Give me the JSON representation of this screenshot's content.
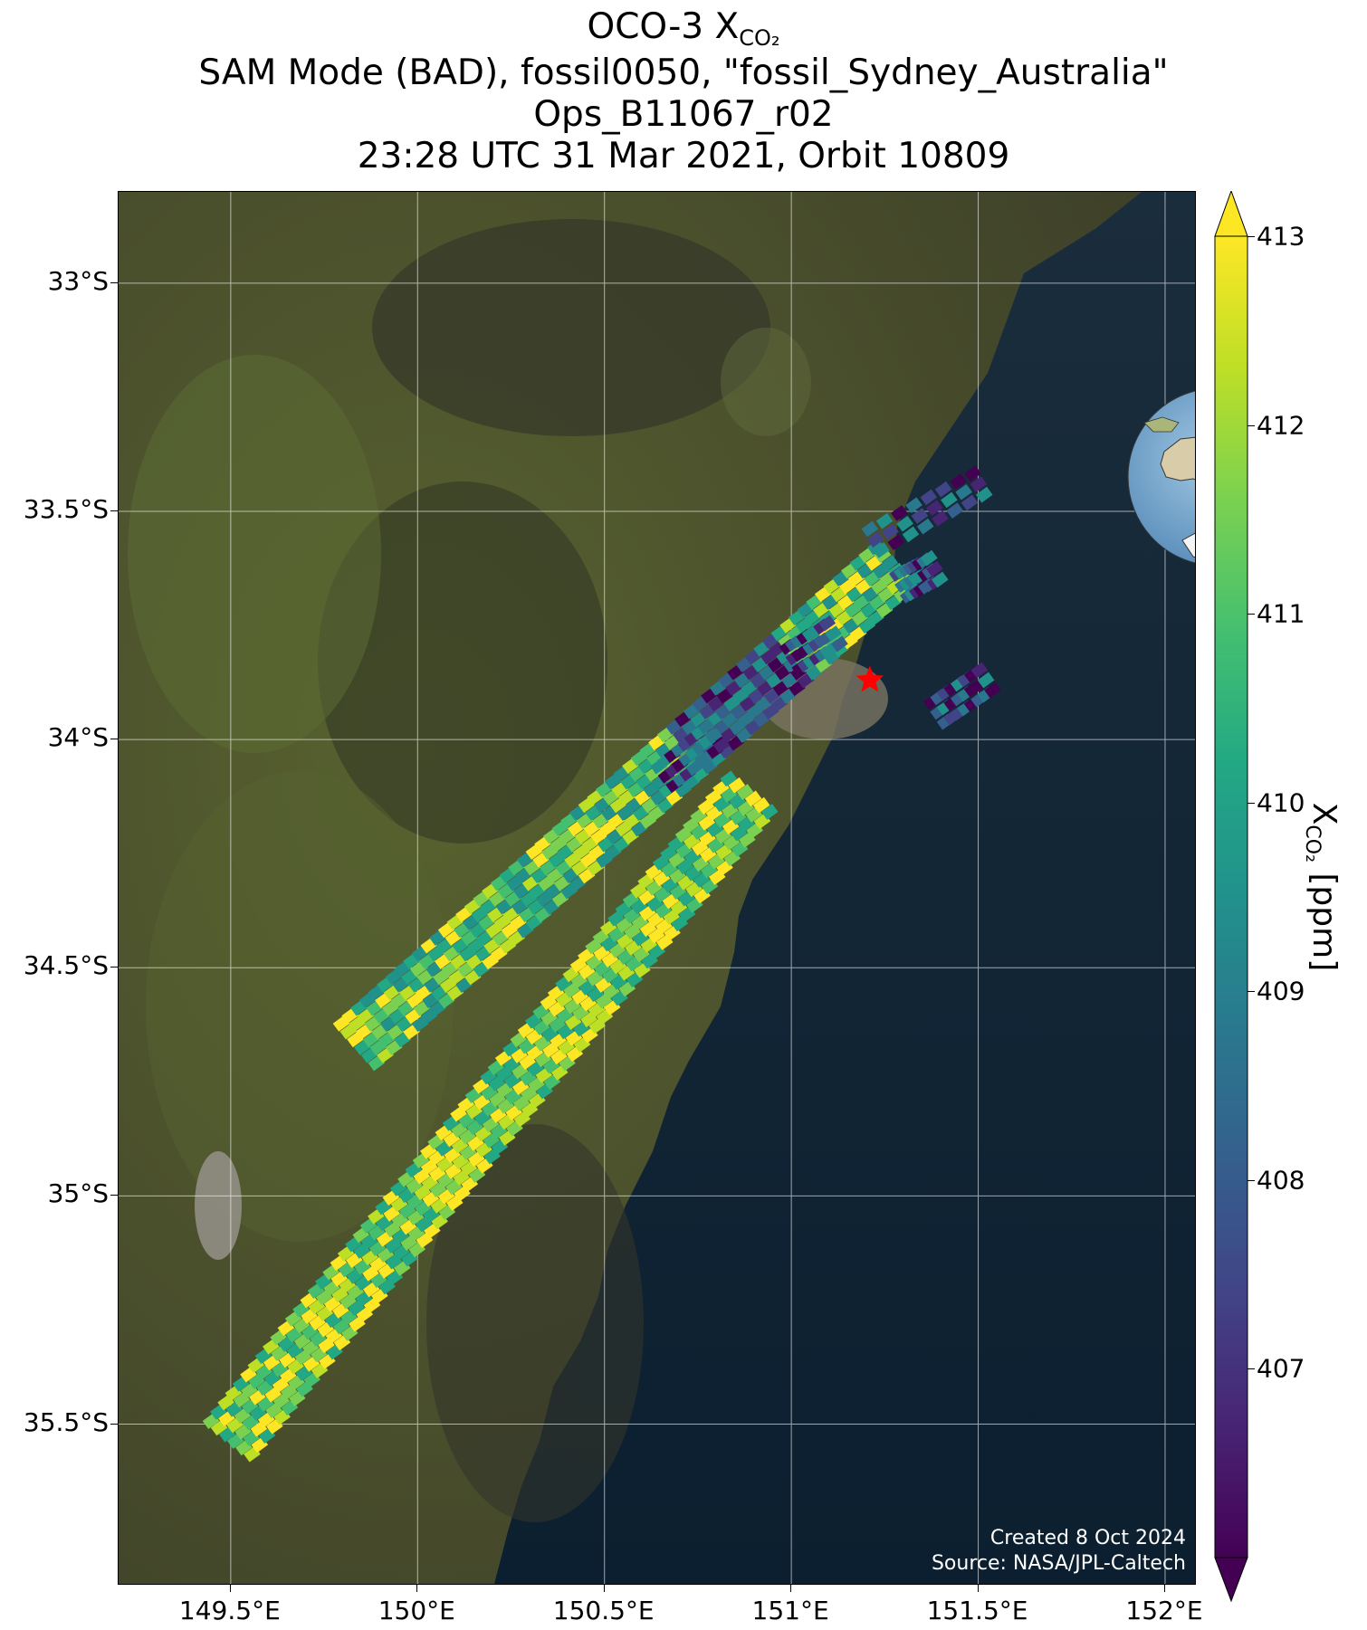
{
  "title": {
    "line1_prefix": "OCO-3 X",
    "line1_sub": "CO₂",
    "line2": "SAM Mode (BAD), fossil0050, \"fossil_Sydney_Australia\"",
    "line3": "Ops_B11067_r02",
    "line4": "23:28 UTC 31 Mar 2021, Orbit 10809"
  },
  "credits": {
    "created": "Created 8 Oct 2024",
    "source": "Source: NASA/JPL-Caltech"
  },
  "colorbar": {
    "label_prefix": "X",
    "label_sub": "CO₂",
    "label_suffix": " [ppm]",
    "ticks": [
      "413",
      "412",
      "411",
      "410",
      "409",
      "408",
      "407"
    ],
    "range": [
      406.0,
      413.0
    ],
    "colormap": "viridis",
    "extend": "both"
  },
  "axes": {
    "y_ticks": [
      "33°S",
      "33.5°S",
      "34°S",
      "34.5°S",
      "35°S",
      "35.5°S"
    ],
    "x_ticks": [
      "149.5°E",
      "150°E",
      "150.5°E",
      "151°E",
      "151.5°E",
      "152°E"
    ],
    "lon_range": [
      149.2,
      152.08
    ],
    "lat_range": [
      -32.8,
      -35.85
    ],
    "grid": true
  },
  "map": {
    "basemap": "satellite imagery",
    "target_marker": {
      "name": "fossil_Sydney_Australia",
      "lon": 151.21,
      "lat": -33.87,
      "color": "#ff0000",
      "icon": "star-icon"
    },
    "colors": {
      "land": "#4d5330",
      "ocean": "#0e2236",
      "gridline": "#ffffff"
    }
  },
  "inset_globe": {
    "region": "Australia",
    "marker_color": "#ff0000"
  }
}
